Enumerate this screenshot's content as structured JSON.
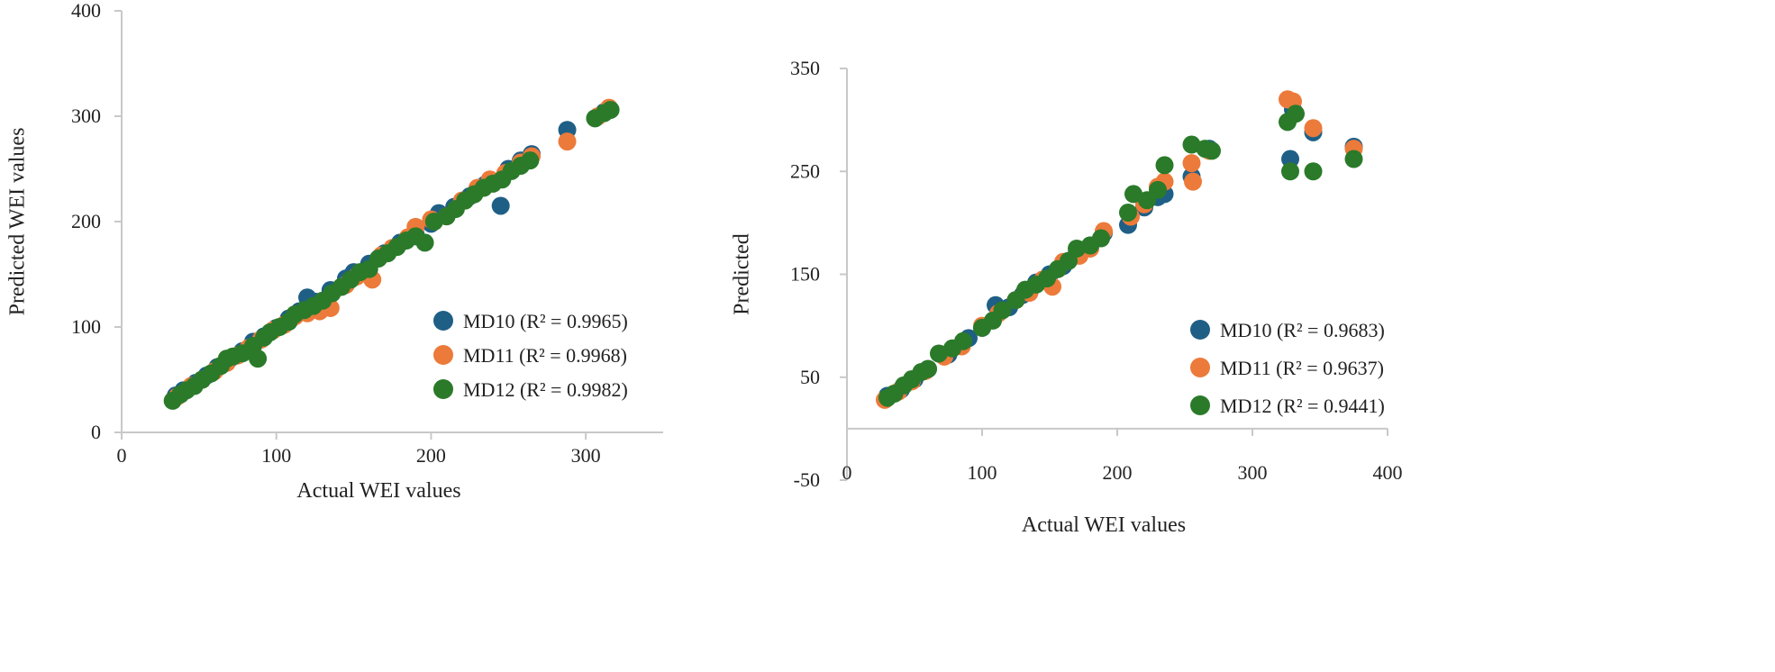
{
  "colors": {
    "MD10": "#1f5f86",
    "MD11": "#ec7a3a",
    "MD12": "#2a7a2a",
    "axis": "#c8c8c8"
  },
  "chart_data": [
    {
      "type": "scatter",
      "title": "",
      "xlabel": "Actual WEI values",
      "ylabel": "Predicted WEI values",
      "xlim": [
        0,
        350
      ],
      "ylim": [
        0,
        400
      ],
      "x_ticks": [
        0,
        100,
        200,
        300
      ],
      "y_ticks": [
        0,
        100,
        200,
        300,
        400
      ],
      "legend_position": "bottom-right",
      "series": [
        {
          "name": "MD10 (R² = 0.9965)",
          "color_key": "MD10",
          "points": [
            [
              35,
              35
            ],
            [
              40,
              40
            ],
            [
              48,
              47
            ],
            [
              55,
              54
            ],
            [
              62,
              62
            ],
            [
              70,
              70
            ],
            [
              78,
              77
            ],
            [
              85,
              86
            ],
            [
              92,
              91
            ],
            [
              100,
              99
            ],
            [
              108,
              108
            ],
            [
              115,
              115
            ],
            [
              120,
              128
            ],
            [
              125,
              124
            ],
            [
              135,
              135
            ],
            [
              145,
              146
            ],
            [
              150,
              152
            ],
            [
              160,
              160
            ],
            [
              170,
              170
            ],
            [
              180,
              180
            ],
            [
              190,
              188
            ],
            [
              200,
              198
            ],
            [
              205,
              208
            ],
            [
              215,
              214
            ],
            [
              225,
              224
            ],
            [
              235,
              235
            ],
            [
              240,
              238
            ],
            [
              245,
              215
            ],
            [
              250,
              250
            ],
            [
              258,
              258
            ],
            [
              265,
              264
            ],
            [
              288,
              287
            ],
            [
              312,
              304
            ]
          ]
        },
        {
          "name": "MD11 (R² = 0.9968)",
          "color_key": "MD11",
          "points": [
            [
              36,
              34
            ],
            [
              45,
              44
            ],
            [
              52,
              50
            ],
            [
              60,
              58
            ],
            [
              68,
              66
            ],
            [
              75,
              73
            ],
            [
              82,
              80
            ],
            [
              90,
              88
            ],
            [
              98,
              97
            ],
            [
              105,
              102
            ],
            [
              112,
              110
            ],
            [
              120,
              113
            ],
            [
              128,
              115
            ],
            [
              135,
              118
            ],
            [
              145,
              140
            ],
            [
              152,
              148
            ],
            [
              162,
              145
            ],
            [
              168,
              168
            ],
            [
              175,
              175
            ],
            [
              185,
              185
            ],
            [
              190,
              195
            ],
            [
              200,
              202
            ],
            [
              210,
              205
            ],
            [
              220,
              220
            ],
            [
              230,
              232
            ],
            [
              238,
              240
            ],
            [
              248,
              246
            ],
            [
              258,
              256
            ],
            [
              265,
              262
            ],
            [
              288,
              276
            ],
            [
              308,
              300
            ],
            [
              315,
              308
            ]
          ]
        },
        {
          "name": "MD12 (R² = 0.9982)",
          "color_key": "MD12",
          "points": [
            [
              33,
              30
            ],
            [
              38,
              36
            ],
            [
              42,
              40
            ],
            [
              47,
              44
            ],
            [
              52,
              50
            ],
            [
              58,
              56
            ],
            [
              64,
              63
            ],
            [
              68,
              70
            ],
            [
              72,
              72
            ],
            [
              78,
              75
            ],
            [
              85,
              82
            ],
            [
              88,
              70
            ],
            [
              92,
              90
            ],
            [
              96,
              95
            ],
            [
              102,
              100
            ],
            [
              108,
              105
            ],
            [
              112,
              112
            ],
            [
              118,
              116
            ],
            [
              124,
              120
            ],
            [
              130,
              125
            ],
            [
              136,
              132
            ],
            [
              142,
              138
            ],
            [
              148,
              145
            ],
            [
              154,
              152
            ],
            [
              160,
              155
            ],
            [
              166,
              165
            ],
            [
              172,
              170
            ],
            [
              178,
              176
            ],
            [
              184,
              182
            ],
            [
              190,
              186
            ],
            [
              196,
              180
            ],
            [
              202,
              200
            ],
            [
              210,
              205
            ],
            [
              216,
              212
            ],
            [
              222,
              220
            ],
            [
              228,
              226
            ],
            [
              234,
              232
            ],
            [
              240,
              236
            ],
            [
              246,
              240
            ],
            [
              252,
              248
            ],
            [
              258,
              253
            ],
            [
              264,
              258
            ],
            [
              306,
              298
            ],
            [
              312,
              303
            ],
            [
              316,
              306
            ]
          ]
        }
      ]
    },
    {
      "type": "scatter",
      "title": "",
      "xlabel": "Actual WEI values",
      "ylabel": "Predicted",
      "xlim": [
        0,
        400
      ],
      "ylim": [
        -50,
        350
      ],
      "x_ticks": [
        0,
        100,
        200,
        300,
        400
      ],
      "y_ticks": [
        -50,
        50,
        150,
        250,
        350
      ],
      "legend_position": "bottom-right",
      "series": [
        {
          "name": "MD10 (R² = 0.9683)",
          "color_key": "MD10",
          "points": [
            [
              30,
              32
            ],
            [
              40,
              38
            ],
            [
              50,
              48
            ],
            [
              60,
              58
            ],
            [
              75,
              72
            ],
            [
              90,
              88
            ],
            [
              100,
              98
            ],
            [
              110,
              120
            ],
            [
              120,
              118
            ],
            [
              130,
              130
            ],
            [
              140,
              142
            ],
            [
              150,
              150
            ],
            [
              160,
              158
            ],
            [
              170,
              170
            ],
            [
              180,
              178
            ],
            [
              190,
              190
            ],
            [
              208,
              198
            ],
            [
              220,
              215
            ],
            [
              230,
              225
            ],
            [
              235,
              228
            ],
            [
              255,
              245
            ],
            [
              268,
              272
            ],
            [
              328,
              262
            ],
            [
              330,
              310
            ],
            [
              345,
              288
            ],
            [
              375,
              274
            ]
          ]
        },
        {
          "name": "MD11 (R² = 0.9637)",
          "color_key": "MD11",
          "points": [
            [
              28,
              28
            ],
            [
              38,
              36
            ],
            [
              48,
              46
            ],
            [
              58,
              56
            ],
            [
              72,
              70
            ],
            [
              85,
              80
            ],
            [
              100,
              100
            ],
            [
              112,
              112
            ],
            [
              125,
              125
            ],
            [
              135,
              132
            ],
            [
              145,
              145
            ],
            [
              152,
              138
            ],
            [
              160,
              162
            ],
            [
              172,
              168
            ],
            [
              180,
              175
            ],
            [
              190,
              192
            ],
            [
              210,
              206
            ],
            [
              220,
              218
            ],
            [
              230,
              235
            ],
            [
              235,
              240
            ],
            [
              255,
              258
            ],
            [
              256,
              240
            ],
            [
              268,
              270
            ],
            [
              326,
              320
            ],
            [
              330,
              318
            ],
            [
              345,
              292
            ],
            [
              375,
              272
            ]
          ]
        },
        {
          "name": "MD12 (R² = 0.9441)",
          "color_key": "MD12",
          "points": [
            [
              30,
              30
            ],
            [
              35,
              34
            ],
            [
              42,
              42
            ],
            [
              48,
              48
            ],
            [
              55,
              55
            ],
            [
              60,
              58
            ],
            [
              68,
              73
            ],
            [
              78,
              78
            ],
            [
              86,
              85
            ],
            [
              100,
              98
            ],
            [
              108,
              105
            ],
            [
              115,
              115
            ],
            [
              125,
              125
            ],
            [
              132,
              135
            ],
            [
              140,
              140
            ],
            [
              148,
              146
            ],
            [
              156,
              155
            ],
            [
              164,
              163
            ],
            [
              170,
              175
            ],
            [
              180,
              178
            ],
            [
              188,
              185
            ],
            [
              208,
              210
            ],
            [
              212,
              228
            ],
            [
              222,
              222
            ],
            [
              230,
              232
            ],
            [
              235,
              256
            ],
            [
              255,
              276
            ],
            [
              265,
              272
            ],
            [
              270,
              270
            ],
            [
              326,
              298
            ],
            [
              328,
              250
            ],
            [
              332,
              306
            ],
            [
              345,
              250
            ],
            [
              375,
              262
            ]
          ]
        }
      ]
    }
  ]
}
